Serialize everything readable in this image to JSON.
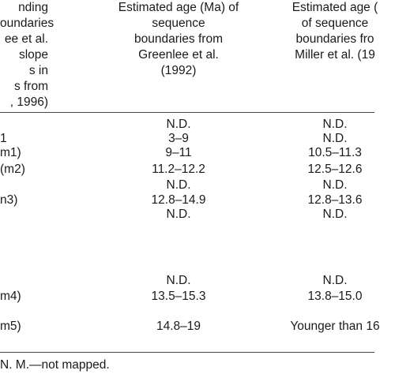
{
  "headers": {
    "col1": [
      "nding",
      "oundaries",
      "ee et al.",
      "slope",
      "s in",
      "s from",
      ", 1996)"
    ],
    "col2": [
      "Estimated age (Ma) of",
      "sequence",
      "boundaries from",
      "Greenlee et al.",
      "(1992)"
    ],
    "col3": [
      "Estimated age (",
      "of sequence",
      "boundaries fro",
      "Miller et al. (19"
    ]
  },
  "rows": [
    {
      "c1": "",
      "c2": "N.D.",
      "c3": "N.D."
    },
    {
      "c1": "1",
      "c2": "3–9",
      "c3": "N.D."
    },
    {
      "c1": "m1)",
      "c2": "9–11",
      "c3": "10.5–11.3"
    },
    {
      "c1": "(m2)",
      "c2": "11.2–12.2",
      "c3": "12.5–12.6"
    },
    {
      "c1": "",
      "c2": "N.D.",
      "c3": "N.D."
    },
    {
      "c1": "n3)",
      "c2": "12.8–14.9",
      "c3": "12.8–13.6"
    },
    {
      "c1": "",
      "c2": "N.D.",
      "c3": "N.D."
    },
    {
      "c1": "",
      "c2": "N.D.",
      "c3": "N.D."
    },
    {
      "c1": "m4)",
      "c2": "13.5–15.3",
      "c3": "13.8–15.0"
    },
    {
      "c1": "m5)",
      "c2": "14.8–19",
      "c3": "Younger than 16"
    }
  ],
  "footnote": "N. M.—not mapped."
}
